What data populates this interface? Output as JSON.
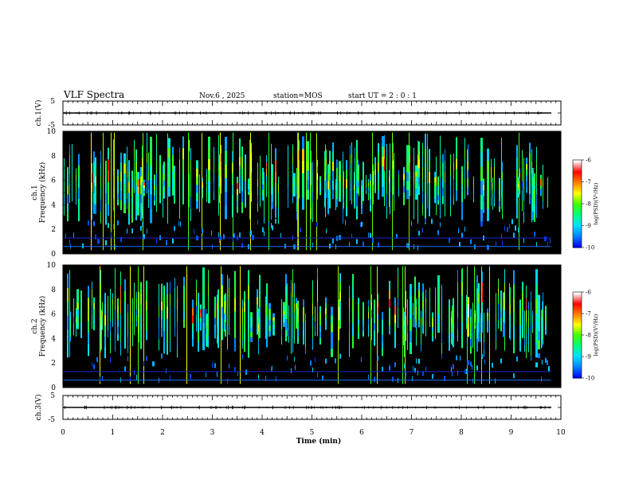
{
  "header": {
    "title": "VLF Spectra",
    "date": "Nov.6 , 2025",
    "station": "station=MOS",
    "start_ut": "start UT = 2 : 0 : 1"
  },
  "chart_data": [
    {
      "id": "ch1-waveform",
      "type": "line",
      "title": "",
      "ylabel": "ch.1(V)",
      "ylim": [
        -5,
        5
      ],
      "yticks": [
        "5",
        "-5"
      ],
      "x": [
        0,
        1,
        2,
        3,
        4,
        5,
        6,
        7,
        8,
        9,
        9.8
      ],
      "values": [
        0,
        0,
        0,
        0,
        0,
        0,
        0,
        0,
        0,
        0,
        0
      ]
    },
    {
      "id": "ch1-spectrogram",
      "type": "heatmap",
      "ylabel_line1": "ch.1",
      "ylabel_line2": "Frequency (kHz)",
      "ylim": [
        0,
        10
      ],
      "yticks": [
        "0",
        "2",
        "4",
        "6",
        "8",
        "10"
      ],
      "xlim": [
        0,
        10
      ],
      "data_extent_min": 9.8,
      "colorbar": {
        "label": "log(PSD)(V²/Hz)",
        "range": [
          -10,
          -6
        ],
        "ticks": [
          "-6",
          "-7",
          "-8",
          "-9",
          "-10"
        ]
      },
      "seed": 17
    },
    {
      "id": "ch2-spectrogram",
      "type": "heatmap",
      "ylabel_line1": "ch.2",
      "ylabel_line2": "Frequency (kHz)",
      "ylim": [
        0,
        10
      ],
      "yticks": [
        "0",
        "2",
        "4",
        "6",
        "8",
        "10"
      ],
      "xlim": [
        0,
        10
      ],
      "data_extent_min": 9.8,
      "colorbar": {
        "label": "log(PSD)(V²/Hz)",
        "range": [
          -10,
          -6
        ],
        "ticks": [
          "-6",
          "-7",
          "-8",
          "-9",
          "-10"
        ]
      },
      "seed": 53
    },
    {
      "id": "ch3-waveform",
      "type": "line",
      "ylabel": "ch.3(V)",
      "ylim": [
        -5,
        5
      ],
      "yticks": [
        "5",
        "-5"
      ],
      "x": [
        0,
        1,
        2,
        3,
        4,
        5,
        6,
        7,
        8,
        9,
        9.8
      ],
      "values": [
        0,
        0,
        0,
        0,
        0,
        0,
        0,
        0,
        0,
        0,
        0
      ]
    }
  ],
  "xaxis": {
    "label": "Time (min)",
    "xlim": [
      0,
      10
    ],
    "ticks": [
      "0",
      "1",
      "2",
      "3",
      "4",
      "5",
      "6",
      "7",
      "8",
      "9",
      "10"
    ]
  },
  "colors": {
    "background": "#000000",
    "frame": "#000000",
    "colormap": [
      "#0000ff",
      "#0080ff",
      "#00e0ff",
      "#00ff80",
      "#40ff00",
      "#ffff00",
      "#ff8000",
      "#ff0000",
      "#ffffff"
    ]
  }
}
